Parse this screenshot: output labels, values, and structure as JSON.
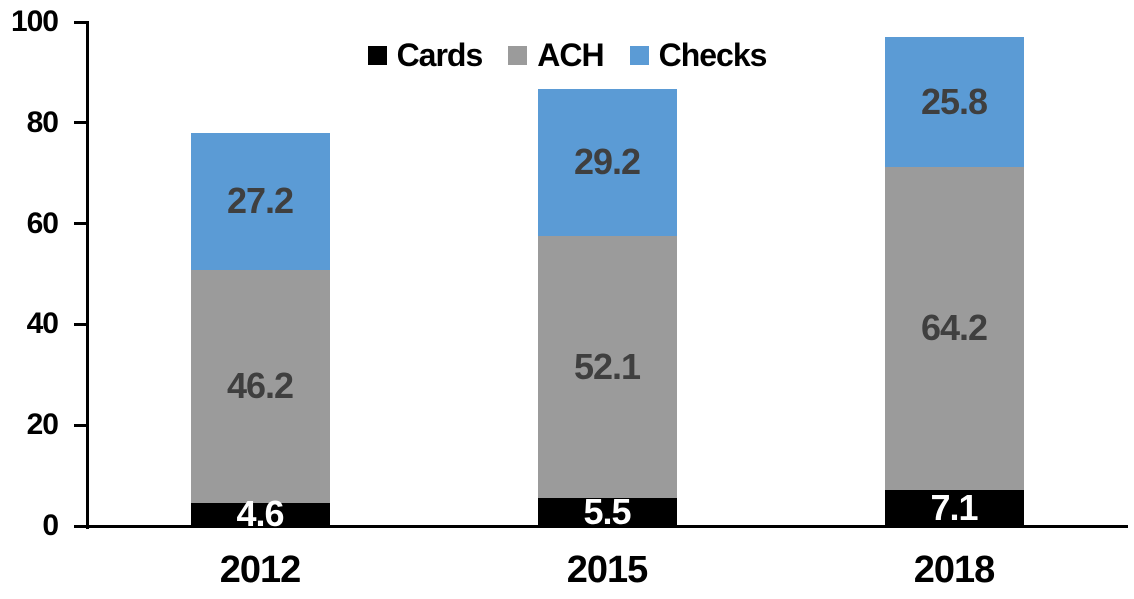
{
  "chart_data": {
    "type": "bar",
    "stacked": true,
    "categories": [
      "2012",
      "2015",
      "2018"
    ],
    "series": [
      {
        "name": "Cards",
        "color": "#000000",
        "label_color": "#FFFFFF",
        "values": [
          4.6,
          5.5,
          7.1
        ]
      },
      {
        "name": "ACH",
        "color": "#9B9B9B",
        "label_color": "#3F3F3F",
        "values": [
          46.2,
          52.1,
          64.2
        ]
      },
      {
        "name": "Checks",
        "color": "#5B9BD5",
        "label_color": "#3F3F3F",
        "values": [
          27.2,
          29.2,
          25.8
        ]
      }
    ],
    "ylim": [
      0,
      100
    ],
    "yticks": [
      0,
      20,
      40,
      60,
      80,
      100
    ],
    "legend_position": "top-center",
    "grid": false,
    "axis_color": "#000000"
  }
}
